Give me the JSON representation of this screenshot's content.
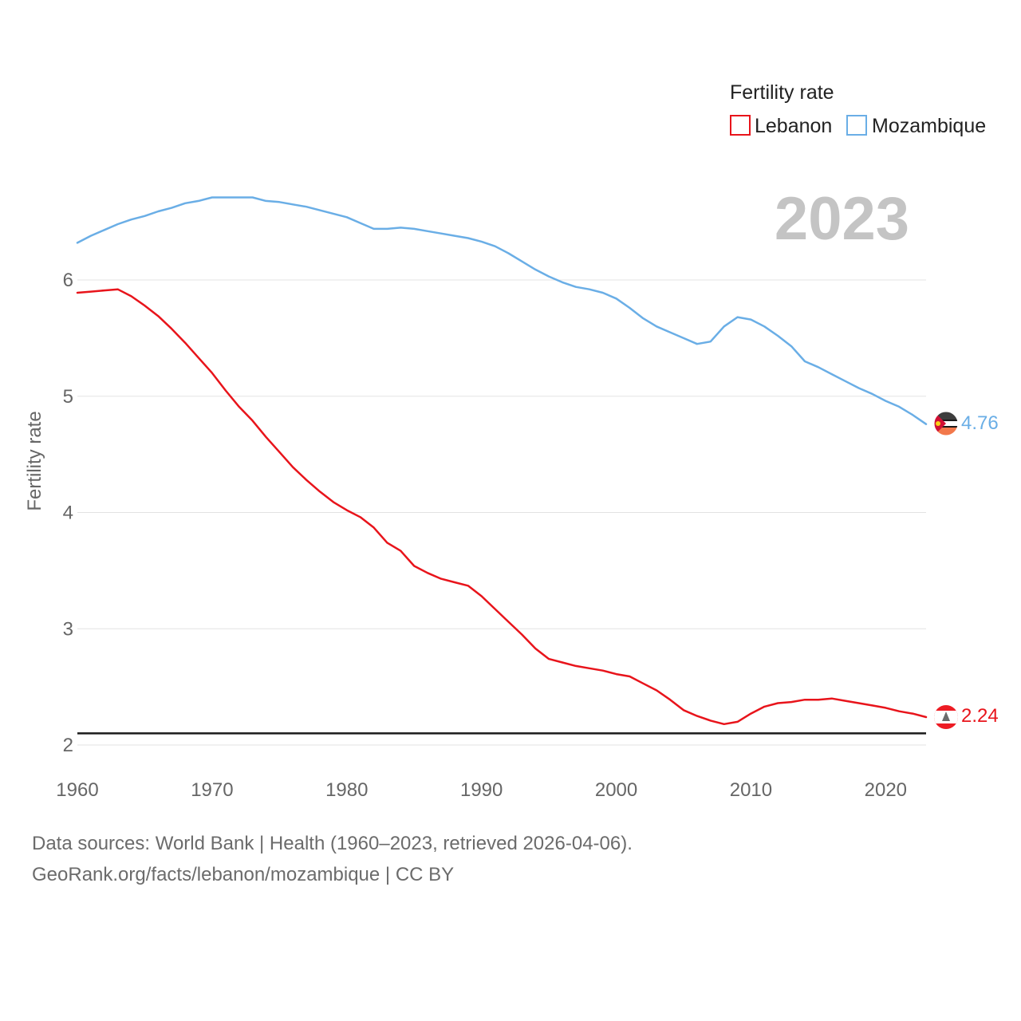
{
  "chart_data": {
    "type": "line",
    "title": "",
    "xlabel": "",
    "ylabel": "Fertility rate",
    "xlim": [
      1960,
      2023
    ],
    "ylim": [
      1.9,
      6.5
    ],
    "x_ticks": [
      1960,
      1970,
      1980,
      1990,
      2000,
      2010,
      2020
    ],
    "y_ticks": [
      2,
      3,
      4,
      5,
      6
    ],
    "grid": true,
    "legend": {
      "title": "Fertility rate",
      "position": "top-right"
    },
    "year_label": "2023",
    "reference_line": {
      "value": 2.1
    },
    "x": [
      1960,
      1961,
      1962,
      1963,
      1964,
      1965,
      1966,
      1967,
      1968,
      1969,
      1970,
      1971,
      1972,
      1973,
      1974,
      1975,
      1976,
      1977,
      1978,
      1979,
      1980,
      1981,
      1982,
      1983,
      1984,
      1985,
      1986,
      1987,
      1988,
      1989,
      1990,
      1991,
      1992,
      1993,
      1994,
      1995,
      1996,
      1997,
      1998,
      1999,
      2000,
      2001,
      2002,
      2003,
      2004,
      2005,
      2006,
      2007,
      2008,
      2009,
      2010,
      2011,
      2012,
      2013,
      2014,
      2015,
      2016,
      2017,
      2018,
      2019,
      2020,
      2021,
      2022,
      2023
    ],
    "series": [
      {
        "name": "Lebanon",
        "color": "#e8141b",
        "end_value": "2.24",
        "values": [
          5.89,
          5.9,
          5.91,
          5.92,
          5.86,
          5.78,
          5.69,
          5.58,
          5.46,
          5.33,
          5.2,
          5.05,
          4.91,
          4.79,
          4.65,
          4.52,
          4.39,
          4.28,
          4.18,
          4.09,
          4.02,
          3.96,
          3.87,
          3.74,
          3.67,
          3.54,
          3.48,
          3.43,
          3.4,
          3.37,
          3.28,
          3.17,
          3.06,
          2.95,
          2.83,
          2.74,
          2.71,
          2.68,
          2.66,
          2.64,
          2.61,
          2.59,
          2.53,
          2.47,
          2.39,
          2.3,
          2.25,
          2.21,
          2.18,
          2.2,
          2.27,
          2.33,
          2.36,
          2.37,
          2.39,
          2.39,
          2.4,
          2.38,
          2.36,
          2.34,
          2.32,
          2.29,
          2.27,
          2.24
        ]
      },
      {
        "name": "Mozambique",
        "color": "#6aaee6",
        "end_value": "4.76",
        "values": [
          6.32,
          6.38,
          6.43,
          6.48,
          6.52,
          6.55,
          6.59,
          6.62,
          6.66,
          6.68,
          6.71,
          6.71,
          6.71,
          6.71,
          6.68,
          6.67,
          6.65,
          6.63,
          6.6,
          6.57,
          6.54,
          6.49,
          6.44,
          6.44,
          6.45,
          6.44,
          6.42,
          6.4,
          6.38,
          6.36,
          6.33,
          6.29,
          6.23,
          6.16,
          6.09,
          6.03,
          5.98,
          5.94,
          5.92,
          5.89,
          5.84,
          5.76,
          5.67,
          5.6,
          5.55,
          5.5,
          5.45,
          5.47,
          5.6,
          5.68,
          5.66,
          5.6,
          5.52,
          5.43,
          5.3,
          5.25,
          5.19,
          5.13,
          5.07,
          5.02,
          4.96,
          4.91,
          4.84,
          4.76
        ]
      }
    ]
  },
  "footer": {
    "line1": "Data sources: World Bank | Health (1960–2023, retrieved 2026-04-06).",
    "line2": "GeoRank.org/facts/lebanon/mozambique | CC BY"
  }
}
